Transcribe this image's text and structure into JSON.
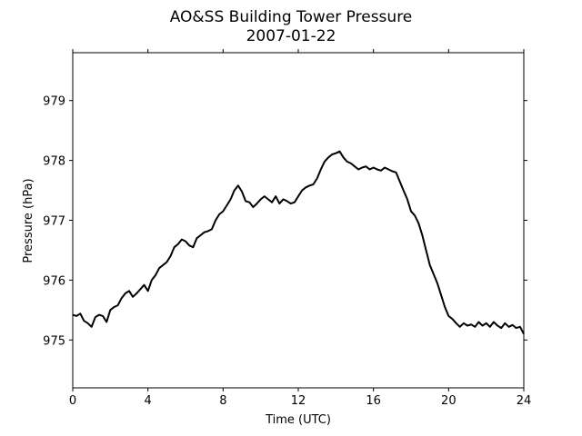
{
  "chart_data": {
    "type": "line",
    "title": "AO&SS Building Tower Pressure",
    "subtitle": "2007-01-22",
    "xlabel": "Time (UTC)",
    "ylabel": "Pressure (hPa)",
    "xlim": [
      0,
      24
    ],
    "ylim": [
      974.2,
      979.8
    ],
    "x_ticks": [
      0,
      4,
      8,
      12,
      16,
      20,
      24
    ],
    "x_tick_labels": [
      "0",
      "4",
      "8",
      "12",
      "16",
      "20",
      "24"
    ],
    "y_ticks": [
      975,
      976,
      977,
      978,
      979
    ],
    "y_tick_labels": [
      "975",
      "976",
      "977",
      "978",
      "979"
    ],
    "grid": false,
    "legend": "none",
    "series": [
      {
        "color": "#000000",
        "x": [
          0,
          0.2,
          0.4,
          0.6,
          0.8,
          1.0,
          1.2,
          1.4,
          1.6,
          1.8,
          2.0,
          2.2,
          2.4,
          2.6,
          2.8,
          3.0,
          3.2,
          3.4,
          3.6,
          3.8,
          4.0,
          4.2,
          4.4,
          4.6,
          4.8,
          5.0,
          5.2,
          5.4,
          5.6,
          5.8,
          6.0,
          6.2,
          6.4,
          6.6,
          6.8,
          7.0,
          7.2,
          7.4,
          7.6,
          7.8,
          8.0,
          8.2,
          8.4,
          8.6,
          8.8,
          9.0,
          9.2,
          9.4,
          9.6,
          9.8,
          10.0,
          10.2,
          10.4,
          10.6,
          10.8,
          11.0,
          11.2,
          11.4,
          11.6,
          11.8,
          12.0,
          12.2,
          12.4,
          12.6,
          12.8,
          13.0,
          13.2,
          13.4,
          13.6,
          13.8,
          14.0,
          14.2,
          14.4,
          14.6,
          14.8,
          15.0,
          15.2,
          15.4,
          15.6,
          15.8,
          16.0,
          16.2,
          16.4,
          16.6,
          16.8,
          17.0,
          17.2,
          17.4,
          17.6,
          17.8,
          18.0,
          18.2,
          18.4,
          18.6,
          18.8,
          19.0,
          19.2,
          19.4,
          19.6,
          19.8,
          20.0,
          20.2,
          20.4,
          20.6,
          20.8,
          21.0,
          21.2,
          21.4,
          21.6,
          21.8,
          22.0,
          22.2,
          22.4,
          22.6,
          22.8,
          23.0,
          23.2,
          23.4,
          23.6,
          23.8,
          24.0
        ],
        "y": [
          975.42,
          975.4,
          975.44,
          975.32,
          975.28,
          975.22,
          975.38,
          975.42,
          975.4,
          975.3,
          975.5,
          975.55,
          975.58,
          975.7,
          975.78,
          975.82,
          975.72,
          975.78,
          975.85,
          975.92,
          975.82,
          976.0,
          976.08,
          976.2,
          976.25,
          976.3,
          976.4,
          976.55,
          976.6,
          976.68,
          976.65,
          976.58,
          976.55,
          976.7,
          976.75,
          976.8,
          976.82,
          976.85,
          977.0,
          977.1,
          977.15,
          977.25,
          977.35,
          977.5,
          977.58,
          977.48,
          977.32,
          977.3,
          977.22,
          977.28,
          977.35,
          977.4,
          977.35,
          977.3,
          977.4,
          977.28,
          977.35,
          977.32,
          977.28,
          977.3,
          977.4,
          977.5,
          977.55,
          977.58,
          977.6,
          977.7,
          977.85,
          977.98,
          978.05,
          978.1,
          978.12,
          978.15,
          978.05,
          977.98,
          977.95,
          977.9,
          977.85,
          977.88,
          977.9,
          977.85,
          977.88,
          977.85,
          977.83,
          977.88,
          977.85,
          977.82,
          977.8,
          977.65,
          977.5,
          977.35,
          977.15,
          977.08,
          976.95,
          976.75,
          976.5,
          976.25,
          976.1,
          975.95,
          975.75,
          975.55,
          975.4,
          975.35,
          975.28,
          975.22,
          975.28,
          975.24,
          975.26,
          975.22,
          975.3,
          975.24,
          975.28,
          975.22,
          975.3,
          975.24,
          975.2,
          975.28,
          975.22,
          975.25,
          975.2,
          975.22,
          975.1
        ]
      }
    ]
  }
}
